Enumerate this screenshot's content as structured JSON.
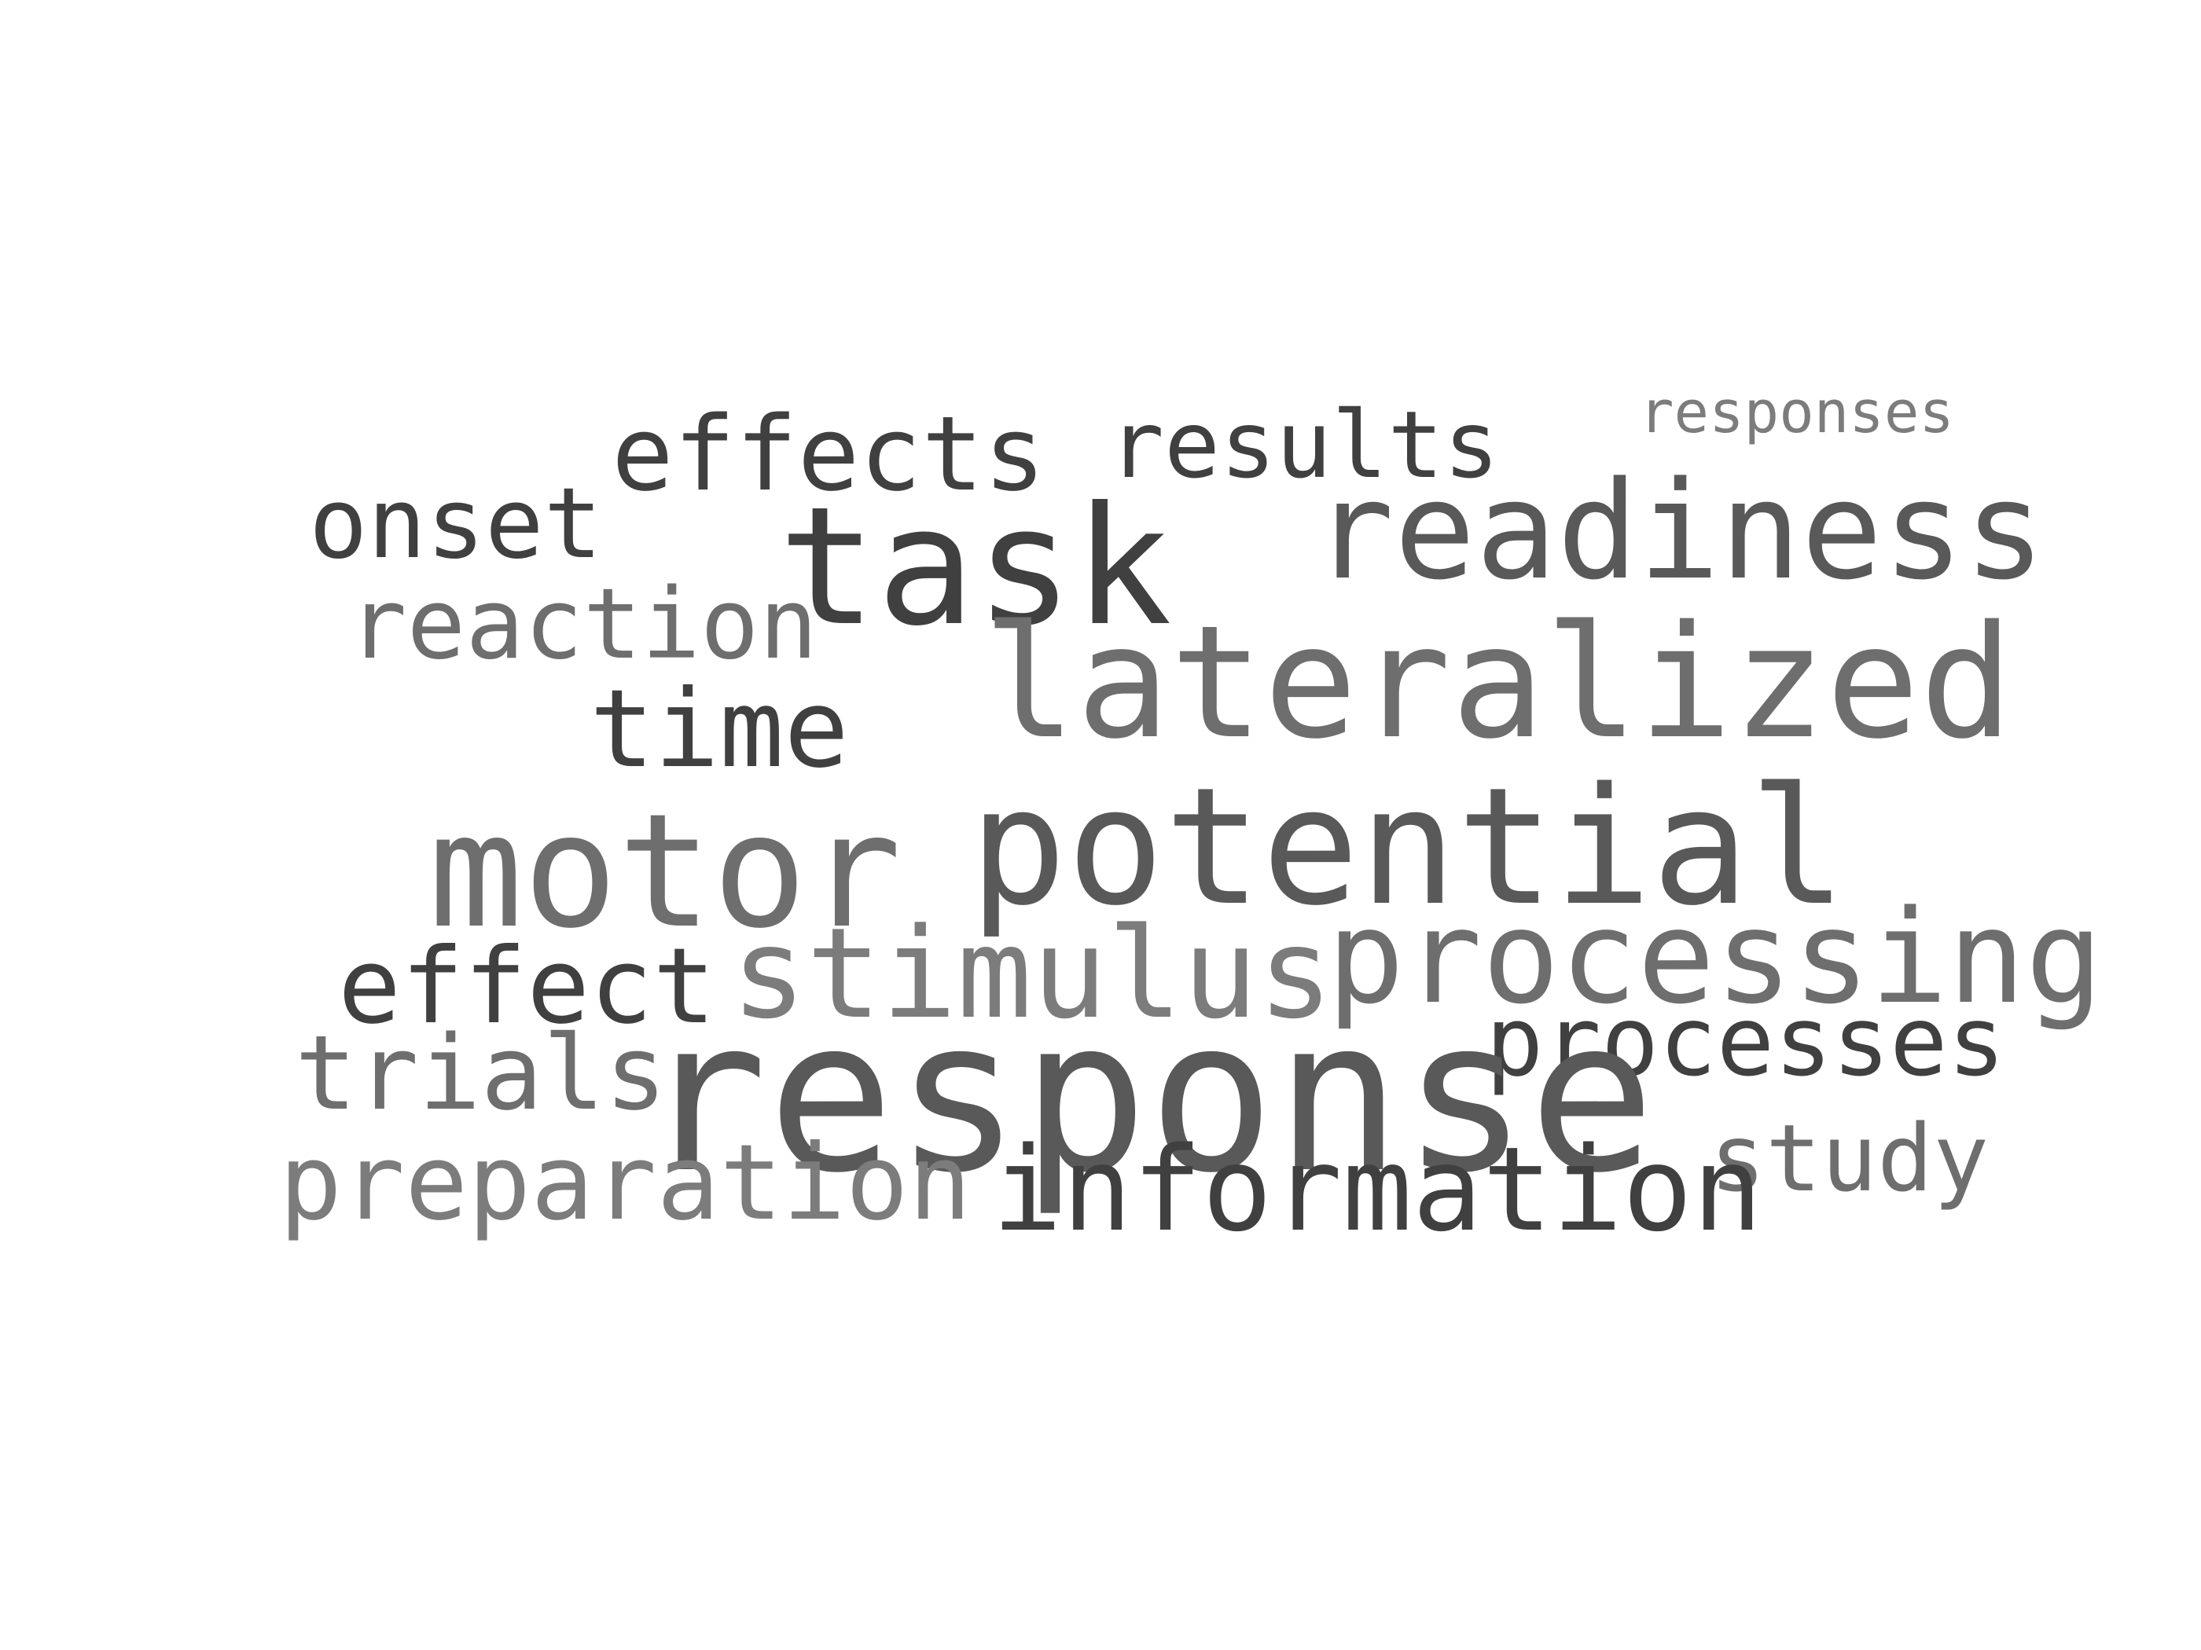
{
  "word_cloud": {
    "words": {
      "responses": "responses",
      "effects": "effects",
      "results": "results",
      "readiness": "readiness",
      "onset": "onset",
      "task": "task",
      "reaction": "reaction",
      "lateralized": "lateralized",
      "time": "time",
      "potential": "potential",
      "motor": "motor",
      "processing": "processing",
      "stimulus": "stimulus",
      "effect": "effect",
      "processes": "processes",
      "response": "response",
      "trials": "trials",
      "study": "study",
      "preparation": "preparation",
      "information": "information"
    },
    "colors": {
      "dark": "#404040",
      "mid": "#595959",
      "gray": "#6e6e6e",
      "light": "#7c7c7c",
      "background": "#ffffff"
    }
  }
}
